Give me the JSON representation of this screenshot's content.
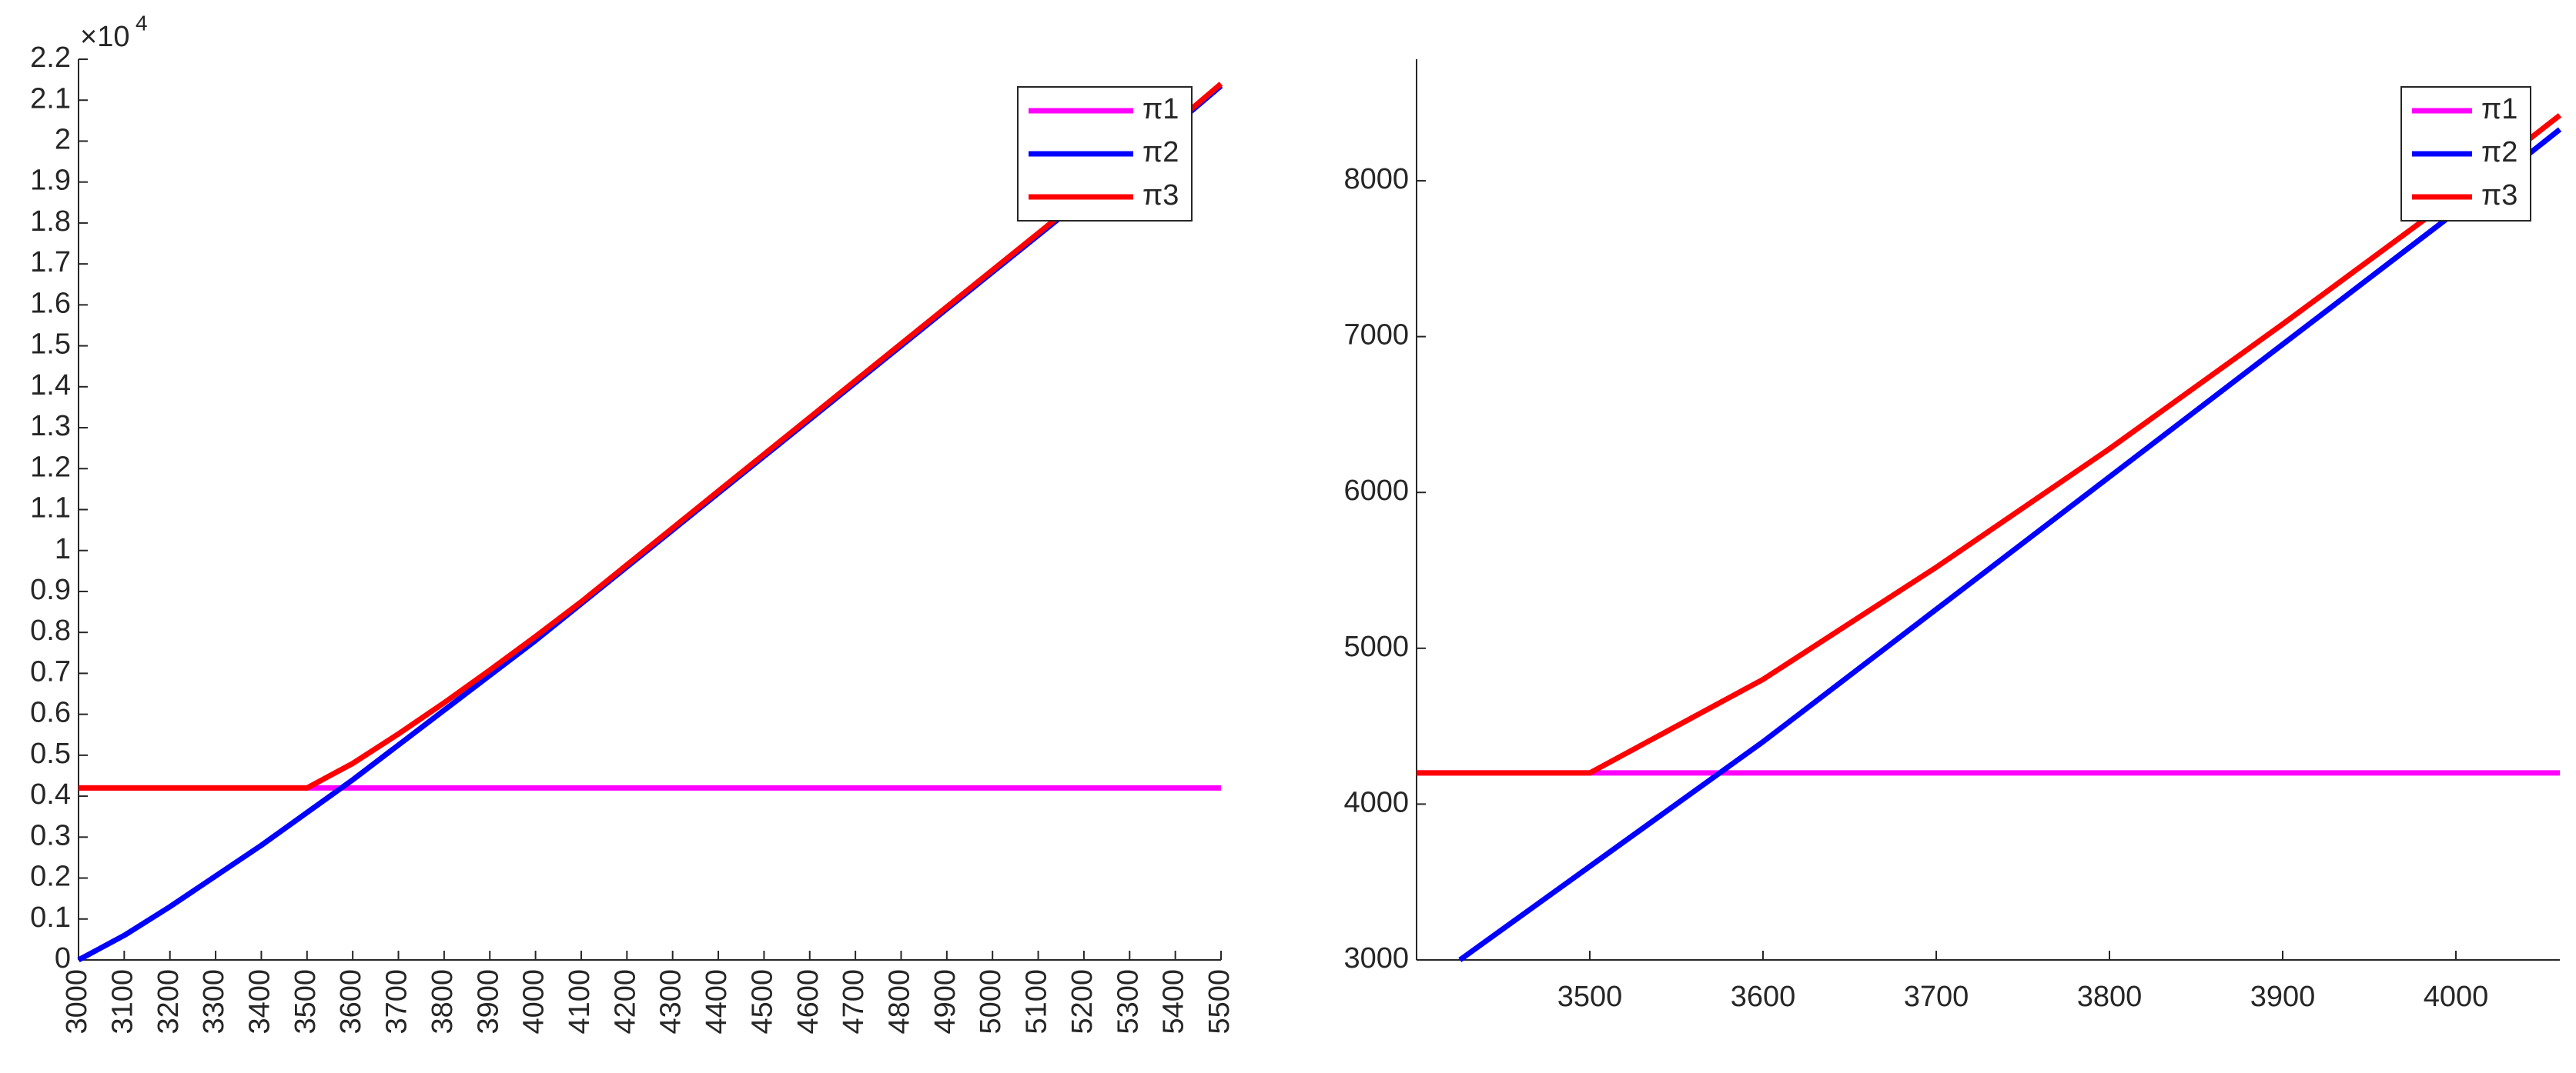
{
  "chart_data": [
    {
      "type": "line",
      "axis_multiplier": "×10",
      "axis_multiplier_exponent": "4",
      "x": [
        3000,
        3100,
        3200,
        3300,
        3400,
        3500,
        3600,
        3700,
        3800,
        3900,
        4000,
        4100,
        4200,
        4300,
        4400,
        4500,
        4600,
        4700,
        4800,
        4900,
        5000,
        5100,
        5200,
        5300,
        5400,
        5500
      ],
      "series": [
        {
          "name": "π1",
          "color": "#ff00ff",
          "values": [
            0.42,
            0.42,
            0.42,
            0.42,
            0.42,
            0.42,
            0.42,
            0.42,
            0.42,
            0.42,
            0.42,
            0.42,
            0.42,
            0.42,
            0.42,
            0.42,
            0.42,
            0.42,
            0.42,
            0.42,
            0.42,
            0.42,
            0.42,
            0.42,
            0.42,
            0.42
          ]
        },
        {
          "name": "π2",
          "color": "#0000ff",
          "values": [
            0,
            0.06,
            0.13,
            0.205,
            0.28,
            0.36,
            0.44,
            0.525,
            0.61,
            0.695,
            0.78,
            0.87,
            0.96,
            1.05,
            1.14,
            1.23,
            1.32,
            1.41,
            1.5,
            1.59,
            1.68,
            1.77,
            1.86,
            1.95,
            2.04,
            2.135
          ]
        },
        {
          "name": "π3",
          "color": "#ff0000",
          "values": [
            0.42,
            0.42,
            0.42,
            0.42,
            0.42,
            0.42,
            0.48,
            0.552,
            0.628,
            0.708,
            0.79,
            0.875,
            0.965,
            1.055,
            1.145,
            1.235,
            1.325,
            1.415,
            1.505,
            1.595,
            1.685,
            1.775,
            1.865,
            1.955,
            2.045,
            2.14
          ]
        }
      ],
      "xlim": [
        3000,
        5500
      ],
      "xticks": [
        3000,
        3100,
        3200,
        3300,
        3400,
        3500,
        3600,
        3700,
        3800,
        3900,
        4000,
        4100,
        4200,
        4300,
        4400,
        4500,
        4600,
        4700,
        4800,
        4900,
        5000,
        5100,
        5200,
        5300,
        5400,
        5500
      ],
      "ylim": [
        0,
        2.2
      ],
      "yticks": [
        0,
        0.1,
        0.2,
        0.3,
        0.4,
        0.5,
        0.6,
        0.7,
        0.8,
        0.9,
        1,
        1.1,
        1.2,
        1.3,
        1.4,
        1.5,
        1.6,
        1.7,
        1.8,
        1.9,
        2,
        2.1,
        2.2
      ],
      "xtick_rotation": -90,
      "legend": "upper right"
    },
    {
      "type": "line",
      "series": [
        {
          "name": "π1",
          "color": "#ff00ff",
          "x": [
            3400,
            4060
          ],
          "values": [
            4200,
            4200
          ]
        },
        {
          "name": "π2",
          "color": "#0000ff",
          "x": [
            3425,
            3500,
            3600,
            3700,
            3800,
            3900,
            4000,
            4060
          ],
          "values": [
            3000,
            3600,
            4400,
            5250,
            6100,
            6950,
            7800,
            8330
          ]
        },
        {
          "name": "π3",
          "color": "#ff0000",
          "x": [
            3400,
            3500,
            3600,
            3700,
            3800,
            3900,
            4000,
            4060
          ],
          "values": [
            4200,
            4200,
            4800,
            5520,
            6280,
            7080,
            7900,
            8420
          ]
        }
      ],
      "xlim": [
        3400,
        4060
      ],
      "xticks": [
        3500,
        3600,
        3700,
        3800,
        3900,
        4000
      ],
      "ylim": [
        3000,
        8780
      ],
      "yticks": [
        3000,
        4000,
        5000,
        6000,
        7000,
        8000
      ],
      "legend": "upper right"
    }
  ]
}
